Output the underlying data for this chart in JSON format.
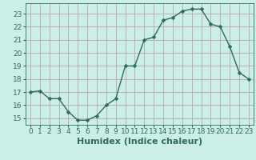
{
  "x": [
    0,
    1,
    2,
    3,
    4,
    5,
    6,
    7,
    8,
    9,
    10,
    11,
    12,
    13,
    14,
    15,
    16,
    17,
    18,
    19,
    20,
    21,
    22,
    23
  ],
  "y": [
    17.0,
    17.1,
    16.5,
    16.5,
    15.5,
    14.85,
    14.85,
    15.2,
    16.0,
    16.5,
    19.0,
    19.0,
    21.0,
    21.2,
    22.5,
    22.7,
    23.2,
    23.35,
    23.35,
    22.2,
    22.0,
    20.5,
    18.5,
    18.0
  ],
  "line_color": "#2e6b5e",
  "marker": "D",
  "marker_size": 2.5,
  "bg_color": "#cceee8",
  "grid_color": "#b8a8a8",
  "xlabel": "Humidex (Indice chaleur)",
  "xlabel_fontsize": 8,
  "ylabel_ticks": [
    15,
    16,
    17,
    18,
    19,
    20,
    21,
    22,
    23
  ],
  "xlim": [
    -0.5,
    23.5
  ],
  "ylim": [
    14.5,
    23.8
  ],
  "tick_fontsize": 6.5,
  "linewidth": 1.0
}
